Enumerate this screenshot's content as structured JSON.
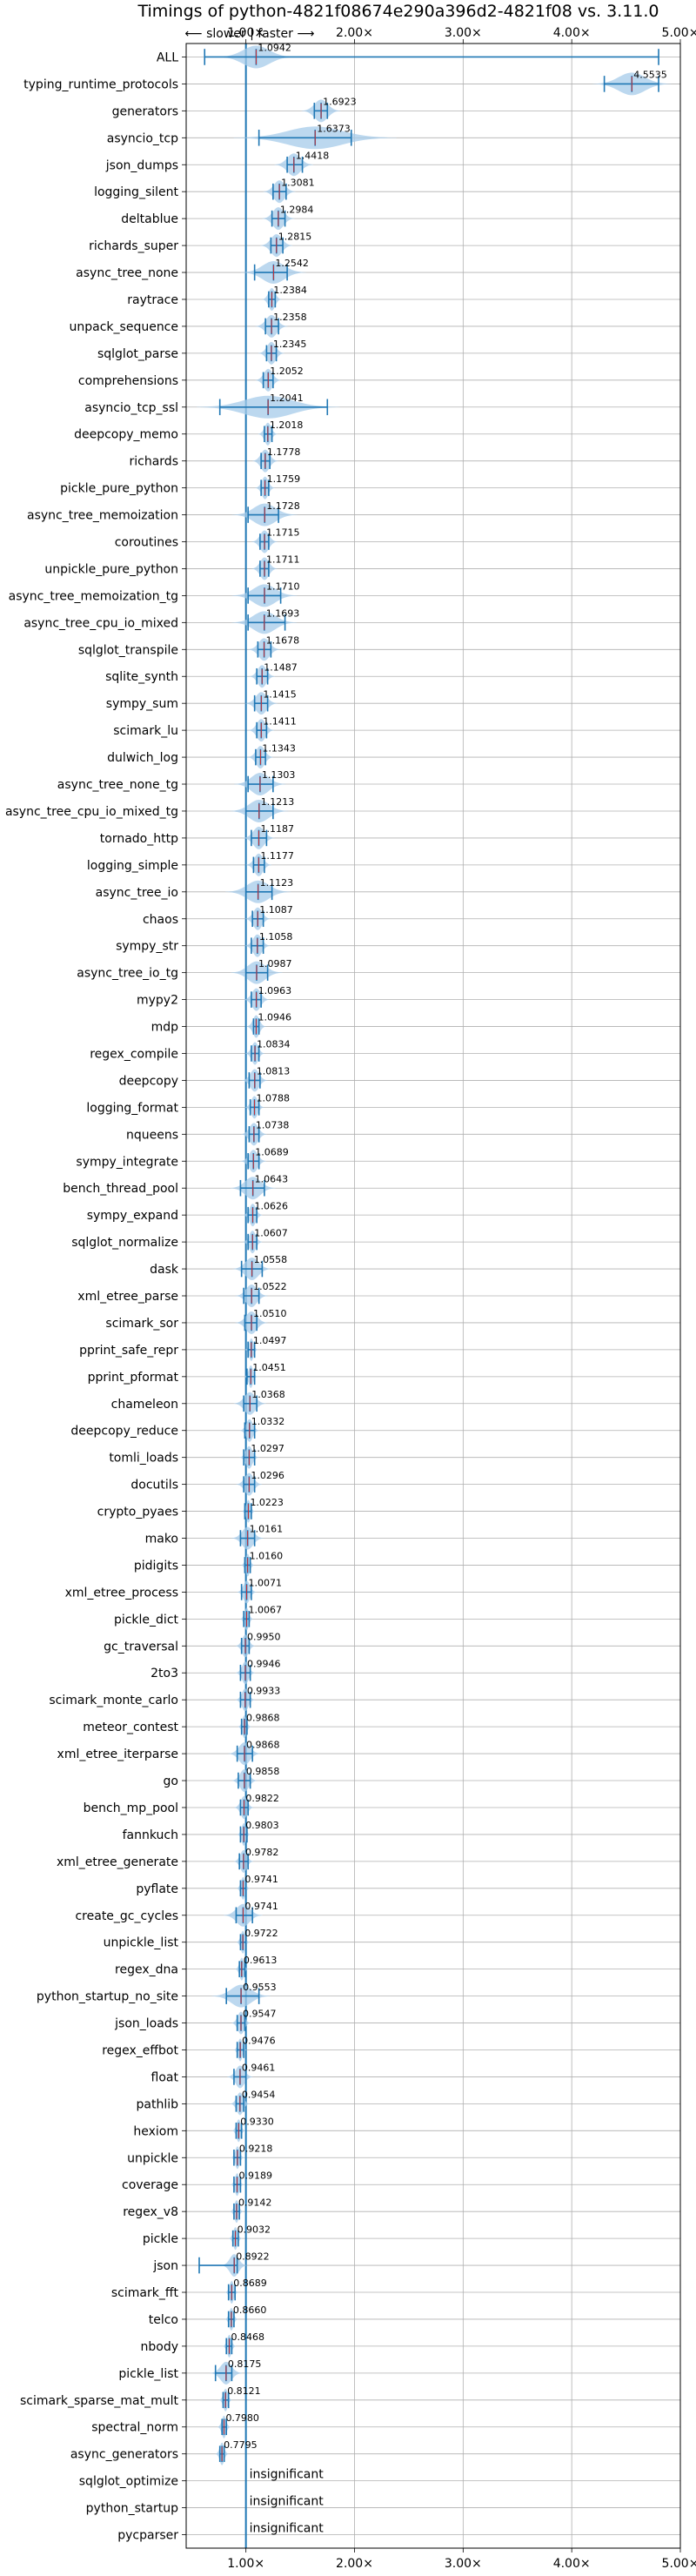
{
  "chart_data": {
    "type": "violin",
    "title": "Timings of python-4821f08674e290a396d2-4821f08 vs. 3.11.0",
    "direction_hint": "⟵ slower | faster ⟶",
    "xlim": [
      0.45,
      5.0
    ],
    "xticks": [
      1.0,
      2.0,
      3.0,
      4.0,
      5.0
    ],
    "xtick_labels": [
      "1.00×",
      "2.00×",
      "3.00×",
      "4.00×",
      "5.00×"
    ],
    "grid": true,
    "colors": {
      "violin": "#a6cbe9",
      "line": "#1f77b4",
      "median": "#d62728"
    },
    "rows": [
      {
        "name": "ALL",
        "value": 1.0942,
        "label": "1.0942",
        "min": 0.62,
        "max": 4.8,
        "spread": 0.12
      },
      {
        "name": "typing_runtime_protocols",
        "value": 4.5535,
        "label": "4.5535",
        "min": 4.3,
        "max": 4.8,
        "spread": 0.12
      },
      {
        "name": "generators",
        "value": 1.6923,
        "label": "1.6923",
        "min": 1.63,
        "max": 1.75,
        "spread": 0.06
      },
      {
        "name": "asyncio_tcp",
        "value": 1.6373,
        "label": "1.6373",
        "min": 1.12,
        "max": 1.97,
        "spread": 0.25
      },
      {
        "name": "json_dumps",
        "value": 1.4418,
        "label": "1.4418",
        "min": 1.38,
        "max": 1.52,
        "spread": 0.06
      },
      {
        "name": "logging_silent",
        "value": 1.3081,
        "label": "1.3081",
        "min": 1.25,
        "max": 1.37,
        "spread": 0.05
      },
      {
        "name": "deltablue",
        "value": 1.2984,
        "label": "1.2984",
        "min": 1.24,
        "max": 1.36,
        "spread": 0.05
      },
      {
        "name": "richards_super",
        "value": 1.2815,
        "label": "1.2815",
        "min": 1.23,
        "max": 1.34,
        "spread": 0.05
      },
      {
        "name": "async_tree_none",
        "value": 1.2542,
        "label": "1.2542",
        "min": 1.08,
        "max": 1.38,
        "spread": 0.1
      },
      {
        "name": "raytrace",
        "value": 1.2384,
        "label": "1.2384",
        "min": 1.21,
        "max": 1.27,
        "spread": 0.03
      },
      {
        "name": "unpack_sequence",
        "value": 1.2358,
        "label": "1.2358",
        "min": 1.18,
        "max": 1.3,
        "spread": 0.05
      },
      {
        "name": "sqlglot_parse",
        "value": 1.2345,
        "label": "1.2345",
        "min": 1.19,
        "max": 1.28,
        "spread": 0.04
      },
      {
        "name": "comprehensions",
        "value": 1.2052,
        "label": "1.2052",
        "min": 1.16,
        "max": 1.25,
        "spread": 0.04
      },
      {
        "name": "asyncio_tcp_ssl",
        "value": 1.2041,
        "label": "1.2041",
        "min": 0.76,
        "max": 1.75,
        "spread": 0.22
      },
      {
        "name": "deepcopy_memo",
        "value": 1.2018,
        "label": "1.2018",
        "min": 1.17,
        "max": 1.24,
        "spread": 0.03
      },
      {
        "name": "richards",
        "value": 1.1778,
        "label": "1.1778",
        "min": 1.14,
        "max": 1.22,
        "spread": 0.04
      },
      {
        "name": "pickle_pure_python",
        "value": 1.1759,
        "label": "1.1759",
        "min": 1.14,
        "max": 1.21,
        "spread": 0.03
      },
      {
        "name": "async_tree_memoization",
        "value": 1.1728,
        "label": "1.1728",
        "min": 1.02,
        "max": 1.3,
        "spread": 0.1
      },
      {
        "name": "coroutines",
        "value": 1.1715,
        "label": "1.1715",
        "min": 1.13,
        "max": 1.21,
        "spread": 0.04
      },
      {
        "name": "unpickle_pure_python",
        "value": 1.1711,
        "label": "1.1711",
        "min": 1.13,
        "max": 1.21,
        "spread": 0.04
      },
      {
        "name": "async_tree_memoization_tg",
        "value": 1.171,
        "label": "1.1710",
        "min": 1.02,
        "max": 1.32,
        "spread": 0.1
      },
      {
        "name": "async_tree_cpu_io_mixed",
        "value": 1.1693,
        "label": "1.1693",
        "min": 1.02,
        "max": 1.36,
        "spread": 0.1
      },
      {
        "name": "sqlglot_transpile",
        "value": 1.1678,
        "label": "1.1678",
        "min": 1.11,
        "max": 1.23,
        "spread": 0.05
      },
      {
        "name": "sqlite_synth",
        "value": 1.1487,
        "label": "1.1487",
        "min": 1.1,
        "max": 1.2,
        "spread": 0.04
      },
      {
        "name": "sympy_sum",
        "value": 1.1415,
        "label": "1.1415",
        "min": 1.08,
        "max": 1.2,
        "spread": 0.05
      },
      {
        "name": "scimark_lu",
        "value": 1.1411,
        "label": "1.1411",
        "min": 1.1,
        "max": 1.19,
        "spread": 0.04
      },
      {
        "name": "dulwich_log",
        "value": 1.1343,
        "label": "1.1343",
        "min": 1.09,
        "max": 1.18,
        "spread": 0.04
      },
      {
        "name": "async_tree_none_tg",
        "value": 1.1303,
        "label": "1.1303",
        "min": 1.02,
        "max": 1.25,
        "spread": 0.08
      },
      {
        "name": "async_tree_cpu_io_mixed_tg",
        "value": 1.1213,
        "label": "1.1213",
        "min": 1.0,
        "max": 1.25,
        "spread": 0.09
      },
      {
        "name": "tornado_http",
        "value": 1.1187,
        "label": "1.1187",
        "min": 1.05,
        "max": 1.19,
        "spread": 0.05
      },
      {
        "name": "logging_simple",
        "value": 1.1177,
        "label": "1.1177",
        "min": 1.07,
        "max": 1.17,
        "spread": 0.04
      },
      {
        "name": "async_tree_io",
        "value": 1.1123,
        "label": "1.1123",
        "min": 1.0,
        "max": 1.24,
        "spread": 0.1
      },
      {
        "name": "chaos",
        "value": 1.1087,
        "label": "1.1087",
        "min": 1.06,
        "max": 1.16,
        "spread": 0.04
      },
      {
        "name": "sympy_str",
        "value": 1.1058,
        "label": "1.1058",
        "min": 1.05,
        "max": 1.16,
        "spread": 0.04
      },
      {
        "name": "async_tree_io_tg",
        "value": 1.0987,
        "label": "1.0987",
        "min": 1.0,
        "max": 1.2,
        "spread": 0.08
      },
      {
        "name": "mypy2",
        "value": 1.0963,
        "label": "1.0963",
        "min": 1.05,
        "max": 1.14,
        "spread": 0.04
      },
      {
        "name": "mdp",
        "value": 1.0946,
        "label": "1.0946",
        "min": 1.07,
        "max": 1.12,
        "spread": 0.03
      },
      {
        "name": "regex_compile",
        "value": 1.0834,
        "label": "1.0834",
        "min": 1.05,
        "max": 1.12,
        "spread": 0.03
      },
      {
        "name": "deepcopy",
        "value": 1.0813,
        "label": "1.0813",
        "min": 1.03,
        "max": 1.13,
        "spread": 0.04
      },
      {
        "name": "logging_format",
        "value": 1.0788,
        "label": "1.0788",
        "min": 1.04,
        "max": 1.12,
        "spread": 0.03
      },
      {
        "name": "nqueens",
        "value": 1.0738,
        "label": "1.0738",
        "min": 1.03,
        "max": 1.12,
        "spread": 0.04
      },
      {
        "name": "sympy_integrate",
        "value": 1.0689,
        "label": "1.0689",
        "min": 1.02,
        "max": 1.12,
        "spread": 0.04
      },
      {
        "name": "bench_thread_pool",
        "value": 1.0643,
        "label": "1.0643",
        "min": 0.95,
        "max": 1.17,
        "spread": 0.07
      },
      {
        "name": "sympy_expand",
        "value": 1.0626,
        "label": "1.0626",
        "min": 1.02,
        "max": 1.1,
        "spread": 0.03
      },
      {
        "name": "sqlglot_normalize",
        "value": 1.0607,
        "label": "1.0607",
        "min": 1.02,
        "max": 1.1,
        "spread": 0.03
      },
      {
        "name": "dask",
        "value": 1.0558,
        "label": "1.0558",
        "min": 0.96,
        "max": 1.15,
        "spread": 0.06
      },
      {
        "name": "xml_etree_parse",
        "value": 1.0522,
        "label": "1.0522",
        "min": 0.98,
        "max": 1.12,
        "spread": 0.05
      },
      {
        "name": "scimark_sor",
        "value": 1.051,
        "label": "1.0510",
        "min": 0.99,
        "max": 1.1,
        "spread": 0.05
      },
      {
        "name": "pprint_safe_repr",
        "value": 1.0497,
        "label": "1.0497",
        "min": 1.02,
        "max": 1.08,
        "spread": 0.02
      },
      {
        "name": "pprint_pformat",
        "value": 1.0451,
        "label": "1.0451",
        "min": 1.01,
        "max": 1.08,
        "spread": 0.02
      },
      {
        "name": "chameleon",
        "value": 1.0368,
        "label": "1.0368",
        "min": 0.98,
        "max": 1.1,
        "spread": 0.05
      },
      {
        "name": "deepcopy_reduce",
        "value": 1.0332,
        "label": "1.0332",
        "min": 0.99,
        "max": 1.08,
        "spread": 0.03
      },
      {
        "name": "tomli_loads",
        "value": 1.0297,
        "label": "1.0297",
        "min": 0.98,
        "max": 1.08,
        "spread": 0.03
      },
      {
        "name": "docutils",
        "value": 1.0296,
        "label": "1.0296",
        "min": 0.98,
        "max": 1.08,
        "spread": 0.04
      },
      {
        "name": "crypto_pyaes",
        "value": 1.0223,
        "label": "1.0223",
        "min": 0.99,
        "max": 1.05,
        "spread": 0.02
      },
      {
        "name": "mako",
        "value": 1.0161,
        "label": "1.0161",
        "min": 0.95,
        "max": 1.08,
        "spread": 0.05
      },
      {
        "name": "pidigits",
        "value": 1.016,
        "label": "1.0160",
        "min": 0.99,
        "max": 1.04,
        "spread": 0.02
      },
      {
        "name": "xml_etree_process",
        "value": 1.0071,
        "label": "1.0071",
        "min": 0.96,
        "max": 1.05,
        "spread": 0.03
      },
      {
        "name": "pickle_dict",
        "value": 1.0067,
        "label": "1.0067",
        "min": 0.98,
        "max": 1.03,
        "spread": 0.02
      },
      {
        "name": "gc_traversal",
        "value": 0.995,
        "label": "0.9950",
        "min": 0.96,
        "max": 1.03,
        "spread": 0.03
      },
      {
        "name": "2to3",
        "value": 0.9946,
        "label": "0.9946",
        "min": 0.95,
        "max": 1.04,
        "spread": 0.03
      },
      {
        "name": "scimark_monte_carlo",
        "value": 0.9933,
        "label": "0.9933",
        "min": 0.95,
        "max": 1.04,
        "spread": 0.03
      },
      {
        "name": "meteor_contest",
        "value": 0.9868,
        "label": "0.9868",
        "min": 0.96,
        "max": 1.01,
        "spread": 0.02
      },
      {
        "name": "xml_etree_iterparse",
        "value": 0.9868,
        "label": "0.9868",
        "min": 0.92,
        "max": 1.06,
        "spread": 0.05
      },
      {
        "name": "go",
        "value": 0.9858,
        "label": "0.9858",
        "min": 0.93,
        "max": 1.04,
        "spread": 0.04
      },
      {
        "name": "bench_mp_pool",
        "value": 0.9822,
        "label": "0.9822",
        "min": 0.95,
        "max": 1.02,
        "spread": 0.03
      },
      {
        "name": "fannkuch",
        "value": 0.9803,
        "label": "0.9803",
        "min": 0.95,
        "max": 1.01,
        "spread": 0.02
      },
      {
        "name": "xml_etree_generate",
        "value": 0.9782,
        "label": "0.9782",
        "min": 0.94,
        "max": 1.02,
        "spread": 0.03
      },
      {
        "name": "pyflate",
        "value": 0.9741,
        "label": "0.9741",
        "min": 0.95,
        "max": 1.0,
        "spread": 0.02
      },
      {
        "name": "create_gc_cycles",
        "value": 0.9741,
        "label": "0.9741",
        "min": 0.91,
        "max": 1.06,
        "spread": 0.06
      },
      {
        "name": "unpickle_list",
        "value": 0.9722,
        "label": "0.9722",
        "min": 0.95,
        "max": 1.0,
        "spread": 0.02
      },
      {
        "name": "regex_dna",
        "value": 0.9613,
        "label": "0.9613",
        "min": 0.94,
        "max": 0.99,
        "spread": 0.02
      },
      {
        "name": "python_startup_no_site",
        "value": 0.9553,
        "label": "0.9553",
        "min": 0.82,
        "max": 1.12,
        "spread": 0.09
      },
      {
        "name": "json_loads",
        "value": 0.9547,
        "label": "0.9547",
        "min": 0.92,
        "max": 0.99,
        "spread": 0.03
      },
      {
        "name": "regex_effbot",
        "value": 0.9476,
        "label": "0.9476",
        "min": 0.92,
        "max": 0.98,
        "spread": 0.02
      },
      {
        "name": "float",
        "value": 0.9461,
        "label": "0.9461",
        "min": 0.89,
        "max": 1.0,
        "spread": 0.04
      },
      {
        "name": "pathlib",
        "value": 0.9454,
        "label": "0.9454",
        "min": 0.91,
        "max": 0.98,
        "spread": 0.03
      },
      {
        "name": "hexiom",
        "value": 0.933,
        "label": "0.9330",
        "min": 0.91,
        "max": 0.96,
        "spread": 0.02
      },
      {
        "name": "unpickle",
        "value": 0.9218,
        "label": "0.9218",
        "min": 0.89,
        "max": 0.95,
        "spread": 0.02
      },
      {
        "name": "coverage",
        "value": 0.9189,
        "label": "0.9189",
        "min": 0.89,
        "max": 0.95,
        "spread": 0.02
      },
      {
        "name": "regex_v8",
        "value": 0.9142,
        "label": "0.9142",
        "min": 0.89,
        "max": 0.94,
        "spread": 0.02
      },
      {
        "name": "pickle",
        "value": 0.9032,
        "label": "0.9032",
        "min": 0.88,
        "max": 0.93,
        "spread": 0.02
      },
      {
        "name": "json",
        "value": 0.8922,
        "label": "0.8922",
        "min": 0.57,
        "max": 0.92,
        "spread": 0.04
      },
      {
        "name": "scimark_fft",
        "value": 0.8689,
        "label": "0.8689",
        "min": 0.84,
        "max": 0.9,
        "spread": 0.02
      },
      {
        "name": "telco",
        "value": 0.866,
        "label": "0.8660",
        "min": 0.84,
        "max": 0.89,
        "spread": 0.02
      },
      {
        "name": "nbody",
        "value": 0.8468,
        "label": "0.8468",
        "min": 0.82,
        "max": 0.87,
        "spread": 0.02
      },
      {
        "name": "pickle_list",
        "value": 0.8175,
        "label": "0.8175",
        "min": 0.72,
        "max": 0.87,
        "spread": 0.05
      },
      {
        "name": "scimark_sparse_mat_mult",
        "value": 0.8121,
        "label": "0.8121",
        "min": 0.79,
        "max": 0.84,
        "spread": 0.02
      },
      {
        "name": "spectral_norm",
        "value": 0.798,
        "label": "0.7980",
        "min": 0.78,
        "max": 0.82,
        "spread": 0.02
      },
      {
        "name": "async_generators",
        "value": 0.7795,
        "label": "0.7795",
        "min": 0.76,
        "max": 0.8,
        "spread": 0.02
      },
      {
        "name": "sqlglot_optimize",
        "value": null,
        "label": "insignificant"
      },
      {
        "name": "python_startup",
        "value": null,
        "label": "insignificant"
      },
      {
        "name": "pycparser",
        "value": null,
        "label": "insignificant"
      }
    ]
  }
}
